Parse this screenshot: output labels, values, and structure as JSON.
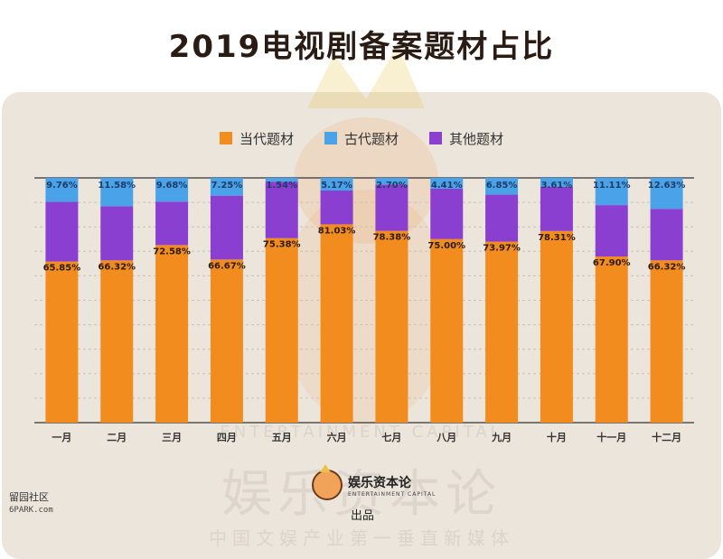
{
  "title": "2019电视剧备案题材占比",
  "colors": {
    "modern": "#f28c1e",
    "ancient": "#4aa3e8",
    "other": "#8b3fd0"
  },
  "legend": [
    {
      "label": "当代题材",
      "color": "#f28c1e"
    },
    {
      "label": "古代题材",
      "color": "#4aa3e8"
    },
    {
      "label": "其他题材",
      "color": "#8b3fd0"
    }
  ],
  "chart_data": {
    "type": "bar",
    "stacked": true,
    "percent": true,
    "categories": [
      "一月",
      "二月",
      "三月",
      "四月",
      "五月",
      "六月",
      "七月",
      "八月",
      "九月",
      "十月",
      "十一月",
      "十二月"
    ],
    "series": [
      {
        "name": "当代题材",
        "values": [
          65.85,
          66.32,
          72.58,
          66.67,
          75.38,
          81.03,
          78.38,
          75.0,
          73.97,
          78.31,
          67.9,
          66.32
        ],
        "labels": [
          "65.85%",
          "66.32%",
          "72.58%",
          "66.67%",
          "75.38%",
          "81.03%",
          "78.38%",
          "75.00%",
          "73.97%",
          "78.31%",
          "67.90%",
          "66.32%"
        ]
      },
      {
        "name": "其他题材",
        "values": [
          24.39,
          22.1,
          17.74,
          26.08,
          23.08,
          13.8,
          18.92,
          20.59,
          19.18,
          18.08,
          20.99,
          21.05
        ]
      },
      {
        "name": "古代题材",
        "values": [
          9.76,
          11.58,
          9.68,
          7.25,
          1.54,
          5.17,
          2.7,
          4.41,
          6.85,
          3.61,
          11.11,
          12.63
        ],
        "labels": [
          "9.76%",
          "11.58%",
          "9.68%",
          "7.25%",
          "1.54%",
          "5.17%",
          "2.70%",
          "4.41%",
          "6.85%",
          "3.61%",
          "11.11%",
          "12.63%"
        ]
      }
    ],
    "ylim": [
      0,
      100
    ],
    "grid": true,
    "legend_position": "top"
  },
  "watermark": {
    "brand_big": "娱乐资本论",
    "brand_en": "ENTERTAINMENT CAPITAL",
    "slogan": "中国文娱产业第一垂直新媒体"
  },
  "brand": {
    "name": "娱乐资本论",
    "en": "ENTERTAINMENT CAPITAL",
    "produced": "出品"
  },
  "corner": {
    "name": "留园社区",
    "site": "6PARK.com"
  }
}
